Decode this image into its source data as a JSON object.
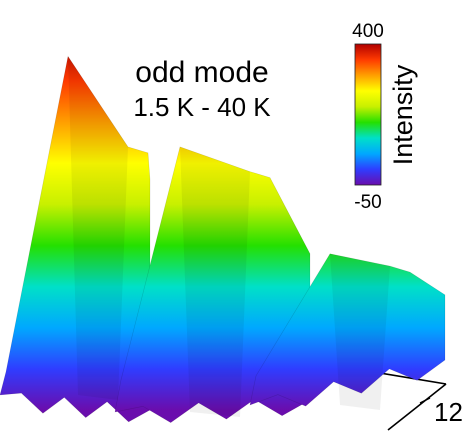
{
  "chart_data": {
    "type": "area",
    "title": "odd mode",
    "subtitle": "1.5 K - 40 K",
    "colorbar": {
      "label": "Intensity",
      "max_label": "400",
      "min_label": "-50",
      "range": [
        -50,
        400
      ],
      "colormap": [
        "#6a0dad",
        "#2f3dff",
        "#00a8ff",
        "#00e0c8",
        "#24e000",
        "#c8f000",
        "#ffff00",
        "#ff9f00",
        "#ff3a00",
        "#b00000"
      ]
    },
    "axis_tick_labels": [
      "12"
    ],
    "series": [
      {
        "values": [
          -40,
          380,
          270,
          230
        ]
      },
      {
        "values": [
          -50,
          270,
          240,
          140
        ]
      },
      {
        "values": [
          -45,
          140,
          125,
          90
        ]
      }
    ],
    "grid": false,
    "legend": "colorbar-top-right"
  }
}
